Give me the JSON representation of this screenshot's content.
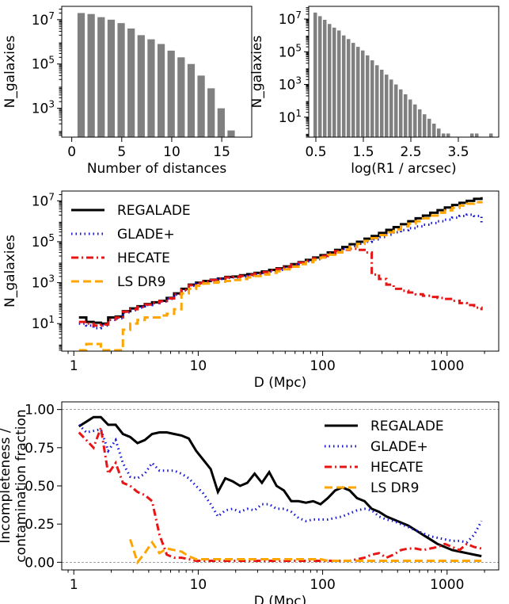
{
  "chart_data": [
    {
      "type": "bar",
      "xlabel": "Number of distances",
      "ylabel": "N_galaxies",
      "yscale": "log",
      "xlim": [
        -1,
        18
      ],
      "ylim": [
        50,
        40000000
      ],
      "xticks": [
        0,
        5,
        10,
        15
      ],
      "xtick_labels": [
        "0",
        "5",
        "10",
        "15"
      ],
      "yticks": [
        1000,
        100000,
        10000000
      ],
      "ytick_labels": [
        "10^3",
        "10^5",
        "10^7"
      ],
      "categories": [
        1,
        2,
        3,
        4,
        5,
        6,
        7,
        8,
        9,
        10,
        11,
        12,
        13,
        14,
        15,
        16
      ],
      "values": [
        20000000,
        18000000,
        13000000,
        10000000,
        7000000,
        4000000,
        2000000,
        1300000,
        800000,
        400000,
        200000,
        100000,
        30000,
        8000,
        1000,
        100
      ],
      "color": "#808080"
    },
    {
      "type": "bar",
      "xlabel": "log(R1 / arcsec)",
      "ylabel": "N_galaxies",
      "yscale": "log",
      "xlim": [
        0.35,
        4.35
      ],
      "ylim": [
        0.6,
        60000000
      ],
      "xticks": [
        0.5,
        1.5,
        2.5,
        3.5
      ],
      "xtick_labels": [
        "0.5",
        "1.5",
        "2.5",
        "3.5"
      ],
      "yticks": [
        10,
        1000,
        100000,
        10000000
      ],
      "ytick_labels": [
        "10^1",
        "10^3",
        "10^5",
        "10^7"
      ],
      "bin_width": 0.1,
      "categories": [
        0.5,
        0.6,
        0.7,
        0.8,
        0.9,
        1.0,
        1.1,
        1.2,
        1.3,
        1.4,
        1.5,
        1.6,
        1.7,
        1.8,
        1.9,
        2.0,
        2.1,
        2.2,
        2.3,
        2.4,
        2.5,
        2.6,
        2.7,
        2.8,
        2.9,
        3.0,
        3.1,
        3.2,
        3.3,
        3.4,
        3.5,
        3.6,
        3.7,
        3.8,
        3.9,
        4.0,
        4.1,
        4.2
      ],
      "values": [
        25000000,
        15000000,
        9000000,
        5000000,
        3000000,
        2000000,
        1000000,
        600000,
        350000,
        200000,
        120000,
        60000,
        30000,
        15000,
        8000,
        4000,
        2000,
        1000,
        500,
        250,
        120,
        60,
        30,
        15,
        8,
        4,
        2,
        1,
        1,
        0,
        0,
        0,
        0,
        1,
        1,
        0,
        0,
        1
      ],
      "color": "#808080"
    },
    {
      "type": "line",
      "step": true,
      "xlabel": "D (Mpc)",
      "ylabel": "N_galaxies",
      "xscale": "log",
      "yscale": "log",
      "xlim": [
        0.8,
        2600
      ],
      "ylim": [
        0.45,
        30000000
      ],
      "xticks": [
        1,
        10,
        100,
        1000
      ],
      "xtick_labels": [
        "1",
        "10",
        "100",
        "1000"
      ],
      "yticks": [
        10,
        1000,
        100000,
        10000000
      ],
      "ytick_labels": [
        "10^1",
        "10^3",
        "10^5",
        "10^7"
      ],
      "legend_position": "upper-left",
      "x": [
        1.1,
        1.26,
        1.44,
        1.65,
        1.89,
        2.17,
        2.48,
        2.84,
        3.25,
        3.72,
        4.26,
        4.88,
        5.59,
        6.4,
        7.33,
        8.39,
        9.61,
        11.0,
        12.6,
        14.4,
        16.5,
        18.9,
        21.7,
        24.8,
        28.4,
        32.5,
        37.2,
        42.6,
        48.8,
        55.9,
        64.0,
        73.3,
        83.9,
        96.1,
        110,
        126,
        144,
        165,
        189,
        217,
        248,
        284,
        325,
        372,
        426,
        488,
        559,
        640,
        733,
        839,
        961,
        1100,
        1260,
        1440,
        1650,
        1890
      ],
      "series": [
        {
          "name": "REGALADE",
          "color": "#000000",
          "dash": "solid",
          "values": [
            20,
            12,
            11,
            10,
            20,
            22,
            40,
            55,
            70,
            90,
            110,
            130,
            180,
            300,
            500,
            800,
            1000,
            1200,
            1400,
            1600,
            1900,
            2000,
            2300,
            2600,
            3000,
            3500,
            4200,
            5000,
            6200,
            8000,
            10000,
            13000,
            17000,
            22000,
            30000,
            40000,
            55000,
            75000,
            100000,
            140000,
            190000,
            270000,
            380000,
            520000,
            720000,
            1000000,
            1400000,
            1900000,
            2600000,
            3500000,
            4700000,
            6200000,
            8000000,
            10000000,
            12500000,
            15000000
          ]
        },
        {
          "name": "GLADE+",
          "color": "#1515d8",
          "dash": "dotted",
          "values": [
            10,
            8,
            6,
            8,
            15,
            18,
            35,
            45,
            60,
            80,
            100,
            120,
            160,
            260,
            420,
            700,
            900,
            1100,
            1300,
            1500,
            1700,
            1800,
            2000,
            2200,
            2500,
            3000,
            3500,
            4200,
            5000,
            6500,
            8500,
            11000,
            14000,
            18000,
            24000,
            32000,
            45000,
            60000,
            80000,
            100000,
            130000,
            170000,
            220000,
            290000,
            370000,
            460000,
            560000,
            680000,
            820000,
            1000000,
            1200000,
            1500000,
            1800000,
            2100000,
            1800000,
            800000
          ]
        },
        {
          "name": "HECATE",
          "color": "#e81515",
          "dash": "dashdot",
          "values": [
            12,
            10,
            8,
            9,
            16,
            20,
            38,
            50,
            65,
            85,
            105,
            125,
            170,
            280,
            450,
            750,
            950,
            1150,
            1350,
            1550,
            1800,
            1900,
            2100,
            2400,
            2800,
            3300,
            4000,
            4700,
            5800,
            7500,
            9500,
            12000,
            15500,
            20000,
            27000,
            35000,
            40000,
            45000,
            40000,
            30000,
            2500,
            1500,
            800,
            500,
            400,
            330,
            270,
            230,
            200,
            180,
            160,
            130,
            100,
            80,
            60,
            45
          ]
        },
        {
          "name": "LS DR9",
          "color": "#ffa500",
          "dash": "dashed",
          "values": [
            0.5,
            1,
            1,
            0.5,
            0.5,
            0.5,
            5,
            10,
            15,
            20,
            20,
            25,
            30,
            50,
            300,
            500,
            700,
            900,
            1000,
            1100,
            1200,
            1350,
            1500,
            1800,
            2100,
            2500,
            3000,
            3600,
            4500,
            6000,
            8000,
            10000,
            13000,
            17000,
            23000,
            30000,
            42000,
            57000,
            78000,
            110000,
            150000,
            210000,
            290000,
            400000,
            560000,
            770000,
            1000000,
            1400000,
            1900000,
            2600000,
            3400000,
            4500000,
            5800000,
            7200000,
            8500000,
            9500000
          ]
        }
      ]
    },
    {
      "type": "line",
      "xlabel": "D (Mpc)",
      "ylabel": "Incompleteness / contamination fraction",
      "ylabel_line1": "Incompleteness /",
      "ylabel_line2": "contamination fraction",
      "xscale": "log",
      "xlim": [
        0.8,
        2600
      ],
      "ylim": [
        -0.05,
        1.05
      ],
      "xticks": [
        1,
        10,
        100,
        1000
      ],
      "xtick_labels": [
        "1",
        "10",
        "100",
        "1000"
      ],
      "yticks": [
        0,
        0.25,
        0.5,
        0.75,
        1.0
      ],
      "ytick_labels": [
        "0.00",
        "0.25",
        "0.50",
        "0.75",
        "1.00"
      ],
      "hlines": [
        0,
        1
      ],
      "legend_position": "upper-right",
      "x": [
        1.1,
        1.26,
        1.44,
        1.65,
        1.89,
        2.17,
        2.48,
        2.84,
        3.25,
        3.72,
        4.26,
        4.88,
        5.59,
        6.4,
        7.33,
        8.39,
        9.61,
        11.0,
        12.6,
        14.4,
        16.5,
        18.9,
        21.7,
        24.8,
        28.4,
        32.5,
        37.2,
        42.6,
        48.8,
        55.9,
        64.0,
        73.3,
        83.9,
        96.1,
        110,
        126,
        144,
        165,
        189,
        217,
        248,
        284,
        325,
        372,
        426,
        488,
        559,
        640,
        733,
        839,
        961,
        1100,
        1260,
        1440,
        1650,
        1890
      ],
      "series": [
        {
          "name": "REGALADE",
          "color": "#000000",
          "dash": "solid",
          "values": [
            0.89,
            0.92,
            0.95,
            0.95,
            0.9,
            0.9,
            0.84,
            0.82,
            0.78,
            0.8,
            0.84,
            0.85,
            0.85,
            0.84,
            0.83,
            0.81,
            0.73,
            0.67,
            0.61,
            0.46,
            0.55,
            0.53,
            0.5,
            0.52,
            0.58,
            0.52,
            0.59,
            0.5,
            0.47,
            0.4,
            0.4,
            0.39,
            0.4,
            0.38,
            0.42,
            0.47,
            0.49,
            0.47,
            0.42,
            0.4,
            0.35,
            0.33,
            0.3,
            0.28,
            0.26,
            0.24,
            0.21,
            0.18,
            0.15,
            0.12,
            0.1,
            0.08,
            0.07,
            0.06,
            0.05,
            0.04
          ]
        },
        {
          "name": "GLADE+",
          "color": "#1515d8",
          "dash": "dotted",
          "values": [
            0.9,
            0.85,
            0.86,
            0.87,
            0.73,
            0.8,
            0.65,
            0.56,
            0.55,
            0.58,
            0.65,
            0.6,
            0.6,
            0.6,
            0.58,
            0.55,
            0.5,
            0.45,
            0.38,
            0.3,
            0.34,
            0.35,
            0.33,
            0.35,
            0.34,
            0.38,
            0.38,
            0.35,
            0.35,
            0.33,
            0.29,
            0.27,
            0.28,
            0.28,
            0.28,
            0.29,
            0.3,
            0.32,
            0.34,
            0.35,
            0.34,
            0.3,
            0.28,
            0.27,
            0.25,
            0.23,
            0.21,
            0.19,
            0.17,
            0.16,
            0.15,
            0.14,
            0.14,
            0.13,
            0.18,
            0.27
          ]
        },
        {
          "name": "HECATE",
          "color": "#e81515",
          "dash": "dashdot",
          "values": [
            0.85,
            0.8,
            0.75,
            0.88,
            0.58,
            0.65,
            0.52,
            0.5,
            0.46,
            0.44,
            0.4,
            0.18,
            0.05,
            0.03,
            0.03,
            0.02,
            0.01,
            0.01,
            0.01,
            0.01,
            0.01,
            0.01,
            0.01,
            0.01,
            0.01,
            0.01,
            0.01,
            0.01,
            0.01,
            0.01,
            0.01,
            0.01,
            0.01,
            0.01,
            0.01,
            0.01,
            0.01,
            0.01,
            0.02,
            0.03,
            0.05,
            0.06,
            0.03,
            0.05,
            0.08,
            0.09,
            0.09,
            0.08,
            0.09,
            0.1,
            0.12,
            0.1,
            0.08,
            0.12,
            0.1,
            0.09
          ]
        },
        {
          "name": "LS DR9",
          "color": "#ffa500",
          "dash": "dashed",
          "values": [
            null,
            null,
            null,
            null,
            null,
            null,
            null,
            0.15,
            0.0,
            0.06,
            0.13,
            0.06,
            0.09,
            0.08,
            0.07,
            0.04,
            0.02,
            0.02,
            0.02,
            0.02,
            0.02,
            0.02,
            0.02,
            0.02,
            0.02,
            0.02,
            0.02,
            0.02,
            0.02,
            0.02,
            0.02,
            0.02,
            0.02,
            0.02,
            0.01,
            0.01,
            0.01,
            0.01,
            0.01,
            0.01,
            0.01,
            0.01,
            0.01,
            0.01,
            0.01,
            0.01,
            0.01,
            0.01,
            0.01,
            0.01,
            0.01,
            0.01,
            0.01,
            0.01,
            0.01,
            0.01
          ]
        }
      ]
    }
  ]
}
